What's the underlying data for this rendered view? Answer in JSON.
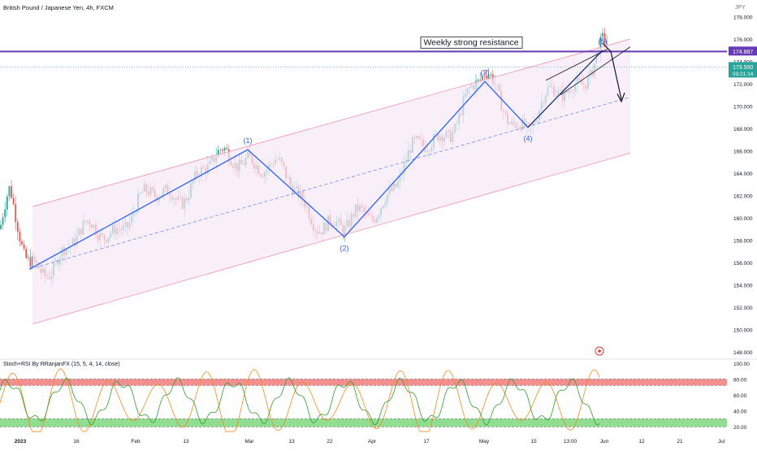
{
  "header": {
    "symbol_title": "British Pound / Japanese Yen, 4h, FXCM",
    "currency": "JPY"
  },
  "indicator": {
    "title": "Stoch+RSI By RRanjanFX (15, 5, 4, 14, close)",
    "ticks": [
      20,
      40,
      60,
      80,
      100
    ],
    "overbought_band": [
      72,
      80
    ],
    "oversold_band": [
      20,
      30
    ]
  },
  "colors": {
    "wave": "#2962ff",
    "resistance": "#673ab7",
    "channel": "#f48fb1",
    "channel_fill": "#f7e8f5",
    "bull": "#26a69a",
    "bear": "#ef5350",
    "stoch_green": "#2e9d2e",
    "stoch_orange": "#f5891e",
    "price_label": "#26a69a",
    "resistance_label": "#673ab7"
  },
  "annotations": {
    "resistance_text": "Weekly strong resistance",
    "resistance_price": "174.887",
    "last_price": "173.500",
    "countdown": "03:21:14",
    "wave_labels": [
      "(1)",
      "(2)",
      "(3)",
      "(4)",
      "(5)"
    ]
  },
  "chart_data": {
    "type": "candlestick",
    "y_range": [
      147.5,
      179.2
    ],
    "y_ticks": [
      148,
      150,
      152,
      154,
      156,
      158,
      160,
      162,
      164,
      166,
      168,
      170,
      172,
      174,
      176,
      178
    ],
    "y_tick_labels": [
      "148.000",
      "150.000",
      "152.000",
      "154.000",
      "156.000",
      "158.000",
      "160.000",
      "162.000",
      "164.000",
      "166.000",
      "168.000",
      "170.000",
      "172.000",
      "174.000",
      "176.000",
      "178.000"
    ],
    "x_labels": [
      "2023",
      "16",
      "Feb",
      "13",
      "Mar",
      "13",
      "22",
      "Apr",
      "17",
      "May",
      "15",
      "13:00",
      "Jun",
      "12",
      "21",
      "Jul"
    ],
    "resistance_level": 174.887,
    "last_price": 173.5,
    "waves": [
      {
        "label": "",
        "price": 155.4
      },
      {
        "label": "(1)",
        "price": 166.1
      },
      {
        "label": "(2)",
        "price": 158.3
      },
      {
        "label": "(3)",
        "price": 172.2
      },
      {
        "label": "(4)",
        "price": 168.1
      },
      {
        "label": "(5)",
        "price": 175.0
      }
    ],
    "channel": {
      "upper": [
        161.0,
        176.0
      ],
      "lower": [
        150.5,
        165.8
      ]
    }
  }
}
